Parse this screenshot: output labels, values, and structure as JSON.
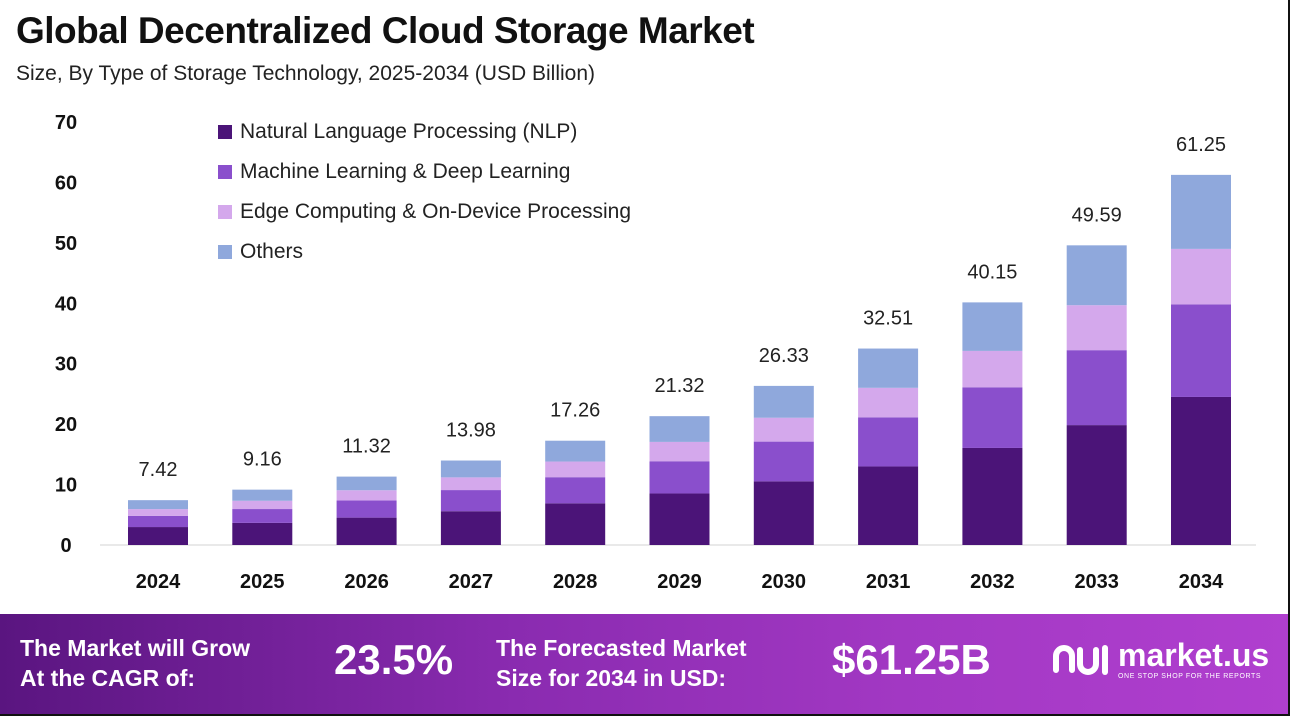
{
  "header": {
    "title": "Global Decentralized Cloud Storage Market",
    "subtitle": "Size, By Type of Storage Technology, 2025-2034 (USD Billion)"
  },
  "colors": {
    "nlp": "#4b1478",
    "ml": "#8a4fcc",
    "edge": "#d4a8ec",
    "others": "#8fa8dc",
    "footer_start": "#5a1580",
    "footer_end": "#b03fcf"
  },
  "legend": [
    {
      "label": "Natural Language Processing (NLP)",
      "color": "#4b1478"
    },
    {
      "label": "Machine Learning & Deep Learning",
      "color": "#8a4fcc"
    },
    {
      "label": "Edge Computing & On-Device Processing",
      "color": "#d4a8ec"
    },
    {
      "label": "Others",
      "color": "#8fa8dc"
    }
  ],
  "chart_data": {
    "type": "bar",
    "stacked": true,
    "title": "Global Decentralized Cloud Storage Market",
    "subtitle": "Size, By Type of Storage Technology, 2025-2034 (USD Billion)",
    "xlabel": "",
    "ylabel": "",
    "ylim": [
      0,
      70
    ],
    "yticks": [
      0,
      10,
      20,
      30,
      40,
      50,
      60,
      70
    ],
    "grid": false,
    "legend_position": "top-left",
    "categories": [
      "2024",
      "2025",
      "2026",
      "2027",
      "2028",
      "2029",
      "2030",
      "2031",
      "2032",
      "2033",
      "2034"
    ],
    "series": [
      {
        "name": "Natural Language Processing (NLP)",
        "color": "#4b1478",
        "values": [
          2.97,
          3.66,
          4.53,
          5.59,
          6.9,
          8.53,
          10.53,
          13.0,
          16.06,
          19.84,
          24.5
        ]
      },
      {
        "name": "Machine Learning & Deep Learning",
        "color": "#8a4fcc",
        "values": [
          1.86,
          2.29,
          2.83,
          3.5,
          4.32,
          5.33,
          6.58,
          8.13,
          10.04,
          12.4,
          15.31
        ]
      },
      {
        "name": "Edge Computing & On-Device Processing",
        "color": "#d4a8ec",
        "values": [
          1.11,
          1.37,
          1.7,
          2.1,
          2.59,
          3.2,
          3.95,
          4.88,
          6.02,
          7.44,
          9.19
        ]
      },
      {
        "name": "Others",
        "color": "#8fa8dc",
        "values": [
          1.48,
          1.84,
          2.26,
          2.79,
          3.45,
          4.26,
          5.27,
          6.5,
          8.03,
          9.91,
          12.25
        ]
      }
    ],
    "totals": [
      "7.42",
      "9.16",
      "11.32",
      "13.98",
      "17.26",
      "21.32",
      "26.33",
      "32.51",
      "40.15",
      "49.59",
      "61.25"
    ]
  },
  "footer": {
    "cagr_line1": "The Market will Grow",
    "cagr_line2": "At the CAGR of:",
    "cagr_value": "23.5%",
    "forecast_line1": "The Forecasted Market",
    "forecast_line2": "Size for 2034 in USD:",
    "forecast_value": "$61.25B",
    "logo_name": "market.us",
    "logo_tagline": "ONE STOP SHOP FOR THE REPORTS",
    "logo_icon": "market-us-logo-icon"
  }
}
